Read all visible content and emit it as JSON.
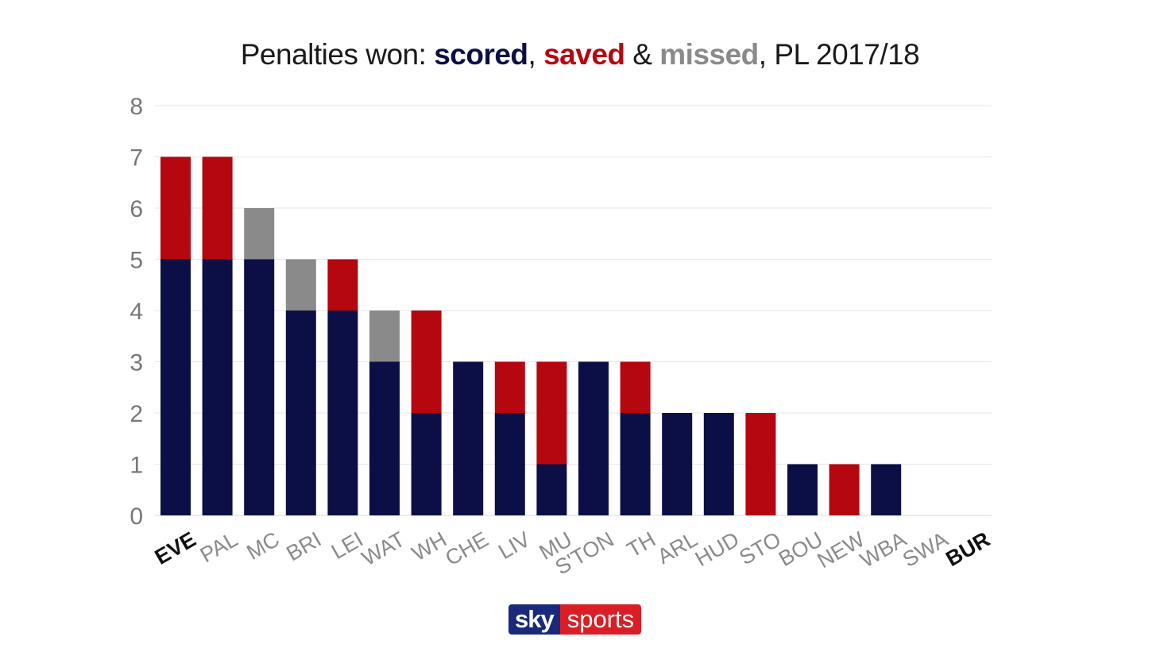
{
  "title": {
    "prefix": "Penalties won: ",
    "scored": "scored",
    "sep1": ", ",
    "saved": "saved",
    "sep2": " & ",
    "missed": "missed",
    "suffix": ", PL 2017/18"
  },
  "logo": {
    "sky": "sky",
    "sports": "sports"
  },
  "colors": {
    "scored": "#0b0f45",
    "saved": "#b40710",
    "missed": "#8a8a8a"
  },
  "chart_data": {
    "type": "bar",
    "stacked": true,
    "title": "Penalties won: scored, saved & missed, PL 2017/18",
    "categories": [
      "EVE",
      "PAL",
      "MC",
      "BRI",
      "LEI",
      "WAT",
      "WH",
      "CHE",
      "LIV",
      "MU",
      "S'TON",
      "TH",
      "ARL",
      "HUD",
      "STO",
      "BOU",
      "NEW",
      "WBA",
      "SWA",
      "BUR"
    ],
    "highlighted_categories": [
      "EVE",
      "BUR"
    ],
    "series": [
      {
        "name": "scored",
        "color": "#0b0f45",
        "values": [
          5,
          5,
          5,
          4,
          4,
          3,
          2,
          3,
          2,
          1,
          3,
          2,
          2,
          2,
          0,
          1,
          0,
          1,
          0,
          0
        ]
      },
      {
        "name": "saved",
        "color": "#b40710",
        "values": [
          2,
          2,
          0,
          0,
          1,
          0,
          2,
          0,
          1,
          2,
          0,
          1,
          0,
          0,
          2,
          0,
          1,
          0,
          0,
          0
        ]
      },
      {
        "name": "missed",
        "color": "#8a8a8a",
        "values": [
          0,
          0,
          1,
          1,
          0,
          1,
          0,
          0,
          0,
          0,
          0,
          0,
          0,
          0,
          0,
          0,
          0,
          0,
          0,
          0
        ]
      }
    ],
    "yticks": [
      0,
      1,
      2,
      3,
      4,
      5,
      6,
      7,
      8
    ],
    "ylim": [
      0,
      8
    ],
    "grid": true,
    "xlabel": "",
    "ylabel": ""
  }
}
